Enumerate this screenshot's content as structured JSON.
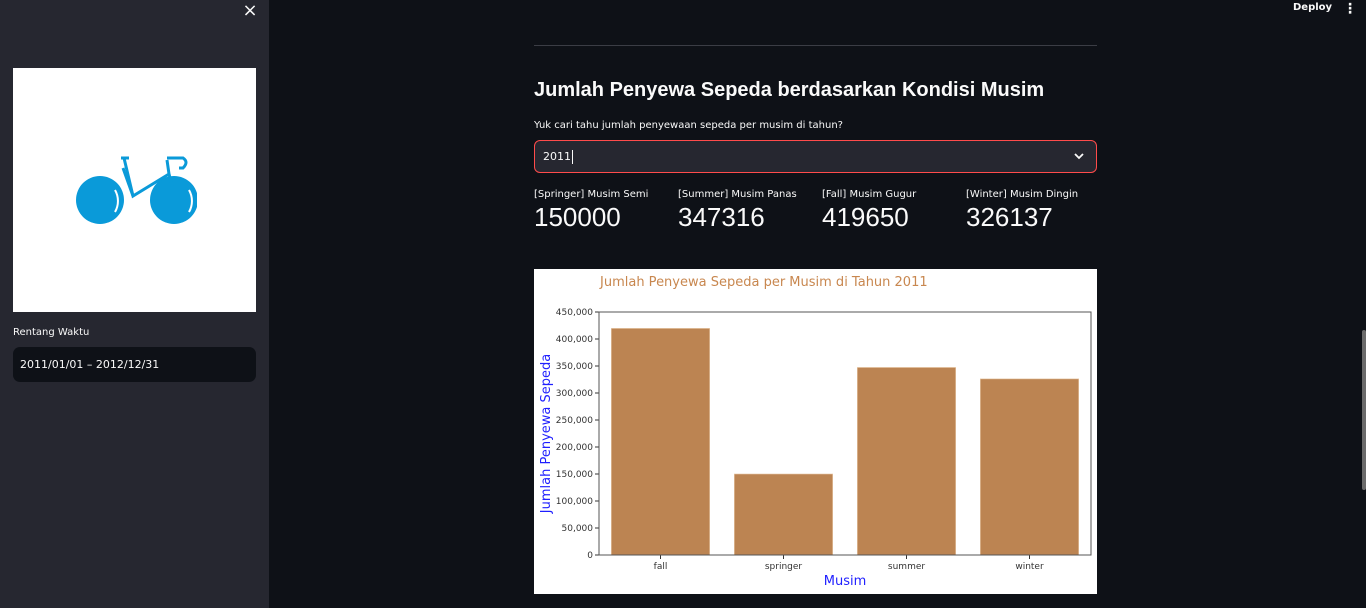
{
  "sidebar": {
    "close_icon": "×",
    "logo_icon": "bicycle-icon",
    "date_label": "Rentang Waktu",
    "date_value": "2011/01/01 – 2012/12/31"
  },
  "header": {
    "deploy_label": "Deploy",
    "menu_icon": "⋮"
  },
  "main": {
    "title": "Jumlah Penyewa Sepeda berdasarkan Kondisi Musim",
    "question": "Yuk cari tahu jumlah penyewaan sepeda per musim di tahun?",
    "year_select": {
      "value": "2011"
    },
    "metrics": [
      {
        "label": "[Springer] Musim Semi",
        "value": "150000"
      },
      {
        "label": "[Summer] Musim Panas",
        "value": "347316"
      },
      {
        "label": "[Fall] Musim Gugur",
        "value": "419650"
      },
      {
        "label": "[Winter] Musim Dingin",
        "value": "326137"
      }
    ]
  },
  "colors": {
    "accent": "#ff4b4b",
    "bar": "#bc8452",
    "chart_title": "#c8874f",
    "axis_label": "#1f1fff",
    "logo": "#0a9ad9"
  },
  "chart_data": {
    "type": "bar",
    "title": "Jumlah Penyewa Sepeda per Musim di Tahun 2011",
    "xlabel": "Musim",
    "ylabel": "Jumlah Penyewa Sepeda",
    "categories": [
      "fall",
      "springer",
      "summer",
      "winter"
    ],
    "values": [
      419650,
      150000,
      347316,
      326137
    ],
    "ylim": [
      0,
      450000
    ],
    "yticks": [
      "0",
      "50,000",
      "100,000",
      "150,000",
      "200,000",
      "250,000",
      "300,000",
      "350,000",
      "400,000",
      "450,000"
    ],
    "grid": false,
    "legend": null
  }
}
